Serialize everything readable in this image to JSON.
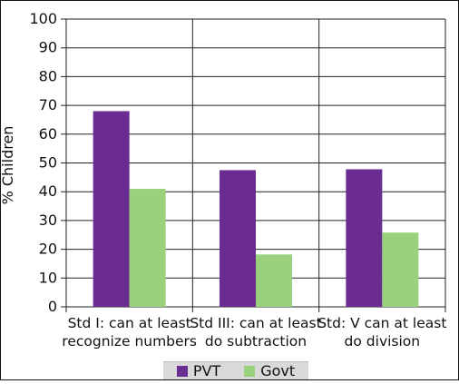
{
  "chart_data": {
    "type": "bar",
    "ylabel": "% Children",
    "ylim": [
      0,
      100
    ],
    "yticks": [
      0,
      10,
      20,
      30,
      40,
      50,
      60,
      70,
      80,
      90,
      100
    ],
    "grid": true,
    "legend_position": "bottom",
    "categories": [
      [
        "Std I: can at least",
        "recognize numbers"
      ],
      [
        "Std III: can at least",
        "do subtraction"
      ],
      [
        "Std: V can at least",
        "do division"
      ]
    ],
    "series": [
      {
        "name": "PVT",
        "color": "#6a2c91",
        "values": [
          68,
          47.5,
          47.8
        ]
      },
      {
        "name": "Govt",
        "color": "#9ad17c",
        "values": [
          41,
          18.2,
          25.8
        ]
      }
    ]
  }
}
